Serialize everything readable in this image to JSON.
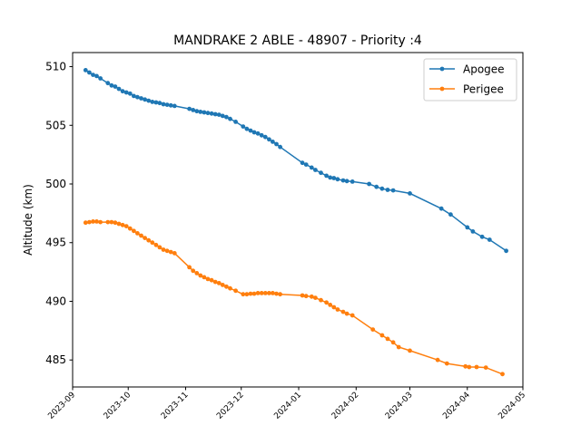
{
  "chart_data": {
    "type": "line",
    "title": "MANDRAKE 2 ABLE - 48907 - Priority :4",
    "xlabel": "",
    "ylabel": "Altitude (km)",
    "xlim": [
      "2023-09-01",
      "2024-05-01"
    ],
    "ylim": [
      482.7,
      511.2
    ],
    "xticks": [
      "2023-09",
      "2023-10",
      "2023-11",
      "2023-12",
      "2024-01",
      "2024-02",
      "2024-03",
      "2024-04",
      "2024-05"
    ],
    "yticks": [
      485,
      490,
      495,
      500,
      505,
      510
    ],
    "grid": false,
    "legend": "top-right",
    "series": [
      {
        "name": "Apogee",
        "color": "#1f77b4",
        "marker": "circle",
        "x": [
          "2023-09-08",
          "2023-09-10",
          "2023-09-12",
          "2023-09-14",
          "2023-09-16",
          "2023-09-20",
          "2023-09-22",
          "2023-09-24",
          "2023-09-26",
          "2023-09-28",
          "2023-09-30",
          "2023-10-02",
          "2023-10-04",
          "2023-10-06",
          "2023-10-08",
          "2023-10-10",
          "2023-10-12",
          "2023-10-14",
          "2023-10-16",
          "2023-10-18",
          "2023-10-20",
          "2023-10-22",
          "2023-10-24",
          "2023-10-26",
          "2023-11-03",
          "2023-11-05",
          "2023-11-07",
          "2023-11-09",
          "2023-11-11",
          "2023-11-13",
          "2023-11-15",
          "2023-11-17",
          "2023-11-19",
          "2023-11-21",
          "2023-11-23",
          "2023-11-25",
          "2023-11-28",
          "2023-12-02",
          "2023-12-04",
          "2023-12-06",
          "2023-12-08",
          "2023-12-10",
          "2023-12-12",
          "2023-12-14",
          "2023-12-16",
          "2023-12-18",
          "2023-12-20",
          "2023-12-22",
          "2024-01-03",
          "2024-01-05",
          "2024-01-08",
          "2024-01-10",
          "2024-01-13",
          "2024-01-16",
          "2024-01-18",
          "2024-01-20",
          "2024-01-22",
          "2024-01-25",
          "2024-01-27",
          "2024-01-30",
          "2024-02-08",
          "2024-02-12",
          "2024-02-15",
          "2024-02-18",
          "2024-02-21",
          "2024-03-01",
          "2024-03-18",
          "2024-03-23",
          "2024-04-01",
          "2024-04-04",
          "2024-04-09",
          "2024-04-13",
          "2024-04-22"
        ],
        "values": [
          509.7,
          509.5,
          509.3,
          509.2,
          509.0,
          508.6,
          508.4,
          508.3,
          508.1,
          507.9,
          507.8,
          507.7,
          507.5,
          507.4,
          507.3,
          507.2,
          507.1,
          507.0,
          506.95,
          506.9,
          506.8,
          506.75,
          506.7,
          506.65,
          506.4,
          506.3,
          506.2,
          506.15,
          506.1,
          506.05,
          506.0,
          505.95,
          505.9,
          505.8,
          505.7,
          505.55,
          505.3,
          504.9,
          504.7,
          504.55,
          504.4,
          504.3,
          504.15,
          504.0,
          503.8,
          503.6,
          503.4,
          503.15,
          501.8,
          501.65,
          501.4,
          501.2,
          500.95,
          500.7,
          500.55,
          500.5,
          500.4,
          500.3,
          500.25,
          500.2,
          500.0,
          499.75,
          499.6,
          499.5,
          499.45,
          499.2,
          497.9,
          497.4,
          496.3,
          495.95,
          495.5,
          495.25,
          494.3
        ]
      },
      {
        "name": "Perigee",
        "color": "#ff7f0e",
        "marker": "circle",
        "x": [
          "2023-09-08",
          "2023-09-10",
          "2023-09-12",
          "2023-09-14",
          "2023-09-16",
          "2023-09-20",
          "2023-09-22",
          "2023-09-24",
          "2023-09-26",
          "2023-09-28",
          "2023-09-30",
          "2023-10-02",
          "2023-10-04",
          "2023-10-06",
          "2023-10-08",
          "2023-10-10",
          "2023-10-12",
          "2023-10-14",
          "2023-10-16",
          "2023-10-18",
          "2023-10-20",
          "2023-10-22",
          "2023-10-24",
          "2023-10-26",
          "2023-11-03",
          "2023-11-05",
          "2023-11-07",
          "2023-11-09",
          "2023-11-11",
          "2023-11-13",
          "2023-11-15",
          "2023-11-17",
          "2023-11-19",
          "2023-11-21",
          "2023-11-23",
          "2023-11-25",
          "2023-11-28",
          "2023-12-02",
          "2023-12-04",
          "2023-12-06",
          "2023-12-08",
          "2023-12-10",
          "2023-12-12",
          "2023-12-14",
          "2023-12-16",
          "2023-12-18",
          "2023-12-20",
          "2023-12-22",
          "2024-01-03",
          "2024-01-05",
          "2024-01-08",
          "2024-01-10",
          "2024-01-13",
          "2024-01-16",
          "2024-01-18",
          "2024-01-20",
          "2024-01-22",
          "2024-01-25",
          "2024-01-27",
          "2024-01-30",
          "2024-02-10",
          "2024-02-15",
          "2024-02-18",
          "2024-02-21",
          "2024-02-24",
          "2024-03-01",
          "2024-03-16",
          "2024-03-21",
          "2024-03-31",
          "2024-04-02",
          "2024-04-06",
          "2024-04-11",
          "2024-04-20"
        ],
        "values": [
          496.7,
          496.75,
          496.8,
          496.8,
          496.75,
          496.75,
          496.75,
          496.7,
          496.6,
          496.5,
          496.4,
          496.2,
          496.0,
          495.8,
          495.6,
          495.4,
          495.2,
          495.0,
          494.8,
          494.6,
          494.4,
          494.3,
          494.2,
          494.1,
          492.9,
          492.6,
          492.4,
          492.2,
          492.05,
          491.9,
          491.8,
          491.65,
          491.55,
          491.4,
          491.25,
          491.1,
          490.9,
          490.6,
          490.6,
          490.65,
          490.65,
          490.7,
          490.7,
          490.7,
          490.7,
          490.7,
          490.65,
          490.6,
          490.5,
          490.45,
          490.4,
          490.3,
          490.1,
          489.9,
          489.7,
          489.5,
          489.3,
          489.1,
          488.95,
          488.8,
          487.6,
          487.1,
          486.8,
          486.5,
          486.1,
          485.8,
          485.0,
          484.7,
          484.45,
          484.4,
          484.4,
          484.35,
          483.8
        ]
      }
    ]
  }
}
